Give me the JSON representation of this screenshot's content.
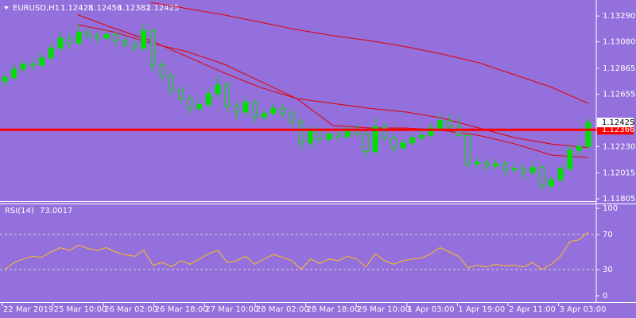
{
  "chart_data": {
    "type": "candlestick",
    "symbol": "EURUSD,H1",
    "header_ohlc": [
      1.12428,
      1.12456,
      1.12382,
      1.12425
    ],
    "ylim": [
      1.11786,
      1.1342
    ],
    "yticks": [
      {
        "value": 1.11805,
        "label": "1.11805"
      },
      {
        "value": 1.12015,
        "label": "1.12015"
      },
      {
        "value": 1.1223,
        "label": "1.12230"
      },
      {
        "value": 1.12655,
        "label": "1.12655"
      },
      {
        "value": 1.12865,
        "label": "1.12865"
      },
      {
        "value": 1.1308,
        "label": "1.13080"
      },
      {
        "value": 1.1329,
        "label": "1.13290"
      }
    ],
    "x_labels": [
      "22 Mar 2019",
      "25 Mar 10:00",
      "26 Mar 02:00",
      "26 Mar 18:00",
      "27 Mar 10:00",
      "28 Mar 02:00",
      "28 Mar 18:00",
      "29 Mar 10:00",
      "1 Apr 03:00",
      "1 Apr 19:00",
      "2 Apr 11:00",
      "3 Apr 03:00"
    ],
    "candle_color": "#00e000",
    "candles": [
      [
        1.1276,
        1.1283,
        1.1272,
        1.1279
      ],
      [
        1.1279,
        1.129,
        1.1277,
        1.1286
      ],
      [
        1.1286,
        1.1293,
        1.1283,
        1.129
      ],
      [
        1.129,
        1.1294,
        1.1285,
        1.1289
      ],
      [
        1.1289,
        1.1299,
        1.1287,
        1.1295
      ],
      [
        1.1295,
        1.1307,
        1.1292,
        1.1303
      ],
      [
        1.1303,
        1.1316,
        1.13,
        1.1311
      ],
      [
        1.1311,
        1.1314,
        1.1302,
        1.1307
      ],
      [
        1.1307,
        1.1322,
        1.1305,
        1.1316
      ],
      [
        1.1316,
        1.1319,
        1.1309,
        1.1313
      ],
      [
        1.1313,
        1.1316,
        1.1307,
        1.1311
      ],
      [
        1.1311,
        1.1318,
        1.1309,
        1.1314
      ],
      [
        1.1314,
        1.1316,
        1.1305,
        1.1309
      ],
      [
        1.1309,
        1.1312,
        1.1302,
        1.1306
      ],
      [
        1.1306,
        1.131,
        1.13,
        1.1303
      ],
      [
        1.1303,
        1.1322,
        1.1301,
        1.1317
      ],
      [
        1.1317,
        1.1319,
        1.1284,
        1.1289
      ],
      [
        1.1289,
        1.1293,
        1.1276,
        1.128
      ],
      [
        1.128,
        1.1284,
        1.1265,
        1.1269
      ],
      [
        1.1269,
        1.1272,
        1.1258,
        1.1262
      ],
      [
        1.1262,
        1.1265,
        1.125,
        1.1254
      ],
      [
        1.1254,
        1.1261,
        1.1251,
        1.1257
      ],
      [
        1.1257,
        1.127,
        1.1255,
        1.1266
      ],
      [
        1.1266,
        1.128,
        1.1262,
        1.1273
      ],
      [
        1.1273,
        1.1276,
        1.1251,
        1.1256
      ],
      [
        1.1256,
        1.1259,
        1.1245,
        1.1251
      ],
      [
        1.1251,
        1.1263,
        1.1248,
        1.1259
      ],
      [
        1.1259,
        1.1261,
        1.1243,
        1.1247
      ],
      [
        1.1247,
        1.1253,
        1.1244,
        1.125
      ],
      [
        1.125,
        1.1258,
        1.1248,
        1.1254
      ],
      [
        1.1254,
        1.1257,
        1.1246,
        1.125
      ],
      [
        1.125,
        1.1253,
        1.1239,
        1.1243
      ],
      [
        1.1243,
        1.1246,
        1.122,
        1.1226
      ],
      [
        1.1226,
        1.124,
        1.1222,
        1.1236
      ],
      [
        1.1236,
        1.1239,
        1.1225,
        1.1229
      ],
      [
        1.1229,
        1.1237,
        1.1227,
        1.1233
      ],
      [
        1.1233,
        1.1236,
        1.1228,
        1.1231
      ],
      [
        1.1231,
        1.124,
        1.1229,
        1.1236
      ],
      [
        1.1236,
        1.1241,
        1.123,
        1.1233
      ],
      [
        1.1233,
        1.1236,
        1.1214,
        1.1219
      ],
      [
        1.1219,
        1.1246,
        1.1217,
        1.1239
      ],
      [
        1.1239,
        1.1242,
        1.1227,
        1.123
      ],
      [
        1.123,
        1.1233,
        1.1218,
        1.1222
      ],
      [
        1.1222,
        1.1229,
        1.122,
        1.1226
      ],
      [
        1.1226,
        1.1233,
        1.1224,
        1.123
      ],
      [
        1.123,
        1.1236,
        1.1228,
        1.1232
      ],
      [
        1.1232,
        1.1242,
        1.123,
        1.1238
      ],
      [
        1.1238,
        1.125,
        1.1236,
        1.1244
      ],
      [
        1.1244,
        1.1249,
        1.1235,
        1.1239
      ],
      [
        1.1239,
        1.1248,
        1.123,
        1.1232
      ],
      [
        1.1232,
        1.1235,
        1.1205,
        1.1209
      ],
      [
        1.1209,
        1.1214,
        1.1206,
        1.121
      ],
      [
        1.121,
        1.1212,
        1.1203,
        1.1207
      ],
      [
        1.1207,
        1.1213,
        1.1204,
        1.1209
      ],
      [
        1.1209,
        1.1211,
        1.1199,
        1.1204
      ],
      [
        1.1204,
        1.1209,
        1.1201,
        1.1205
      ],
      [
        1.1205,
        1.1208,
        1.1197,
        1.1202
      ],
      [
        1.1202,
        1.1211,
        1.12,
        1.1206
      ],
      [
        1.1206,
        1.1208,
        1.1187,
        1.1191
      ],
      [
        1.1191,
        1.1199,
        1.1188,
        1.1196
      ],
      [
        1.1196,
        1.1208,
        1.1194,
        1.1205
      ],
      [
        1.1205,
        1.1224,
        1.1203,
        1.122
      ],
      [
        1.122,
        1.1226,
        1.1215,
        1.1223
      ],
      [
        1.1223,
        1.1246,
        1.1221,
        1.12425
      ]
    ],
    "moving_averages": [
      {
        "color": "#e00000",
        "values": [
          null,
          null,
          null,
          null,
          1.134,
          1.1335,
          1.133,
          1.1324,
          1.1318,
          1.1313,
          1.1309,
          1.1304,
          1.1298,
          1.1291,
          1.1281,
          1.1271,
          1.1258
        ]
      },
      {
        "color": "#e00000",
        "values": [
          null,
          null,
          1.133,
          1.1319,
          1.1309,
          1.1296,
          1.1283,
          1.1271,
          1.1262,
          1.1258,
          1.1254,
          1.1251,
          1.1246,
          1.1238,
          1.123,
          1.1225,
          1.1222
        ]
      },
      {
        "color": "#e00000",
        "values": [
          null,
          null,
          1.1322,
          1.1316,
          1.1307,
          1.13,
          1.129,
          1.1276,
          1.1262,
          1.124,
          1.1238,
          1.1238,
          1.1236,
          1.1232,
          1.1225,
          1.1216,
          1.1214
        ]
      }
    ],
    "hline": {
      "value": 1.12366,
      "label": "1.12366",
      "color": "#ff0000"
    },
    "bid": {
      "value": 1.12425,
      "label": "1.12425"
    },
    "rsi": {
      "name": "RSI(14)",
      "last": 73.0017,
      "color": "#ffc020",
      "ylim": [
        0,
        100
      ],
      "yticks": [
        0,
        30,
        70,
        100
      ],
      "levels": [
        30,
        70
      ],
      "values": [
        30,
        38,
        42,
        45,
        44,
        50,
        55,
        52,
        58,
        54,
        52,
        55,
        50,
        47,
        45,
        52,
        35,
        38,
        33,
        40,
        36,
        42,
        48,
        52,
        38,
        40,
        45,
        36,
        42,
        47,
        44,
        40,
        30,
        42,
        37,
        42,
        40,
        45,
        42,
        33,
        48,
        40,
        36,
        40,
        42,
        43,
        48,
        55,
        50,
        45,
        32,
        35,
        33,
        36,
        34,
        35,
        33,
        38,
        30,
        36,
        45,
        62,
        64,
        73
      ]
    }
  }
}
